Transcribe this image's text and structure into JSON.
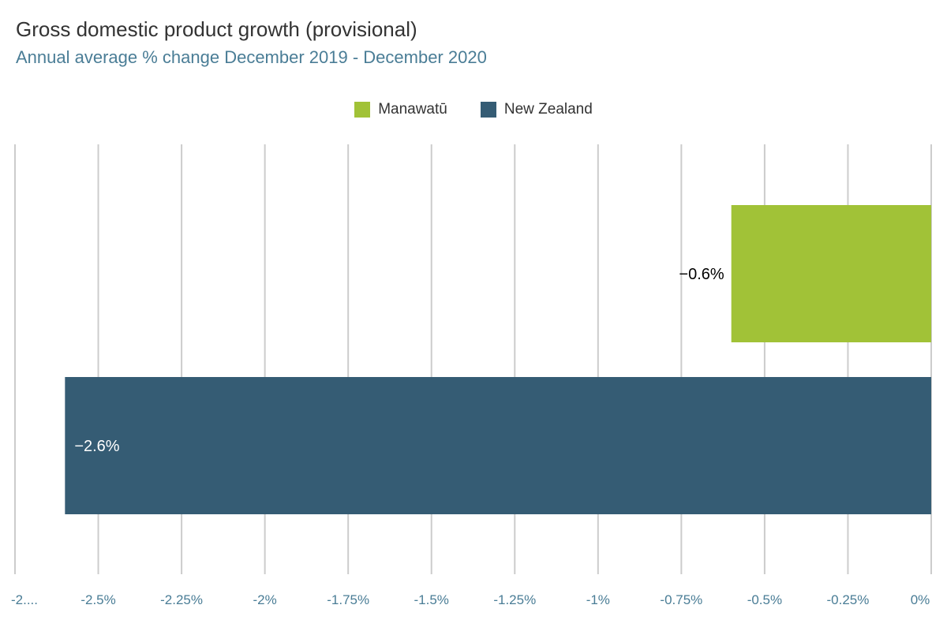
{
  "chart_data": {
    "type": "bar",
    "orientation": "horizontal",
    "title": "Gross domestic product growth (provisional)",
    "subtitle": "Annual average % change December 2019 - December 2020",
    "xlabel": "",
    "ylabel": "",
    "xlim": [
      -2.75,
      0
    ],
    "grid": true,
    "legend_position": "top-center",
    "ticks": [
      -2.75,
      -2.5,
      -2.25,
      -2,
      -1.75,
      -1.5,
      -1.25,
      -1,
      -0.75,
      -0.5,
      -0.25,
      0
    ],
    "tick_labels": [
      "-2....",
      "-2.5%",
      "-2.25%",
      "-2%",
      "-1.75%",
      "-1.5%",
      "-1.25%",
      "-1%",
      "-0.75%",
      "-0.5%",
      "-0.25%",
      "0%"
    ],
    "series": [
      {
        "name": "Manawatū",
        "value": -0.6,
        "label": "−0.6%",
        "color": "#a1c237",
        "label_color": "#000000"
      },
      {
        "name": "New Zealand",
        "value": -2.6,
        "label": "−2.6%",
        "color": "#355c74",
        "label_color": "#ffffff"
      }
    ],
    "grid_color": "#cccccc"
  }
}
